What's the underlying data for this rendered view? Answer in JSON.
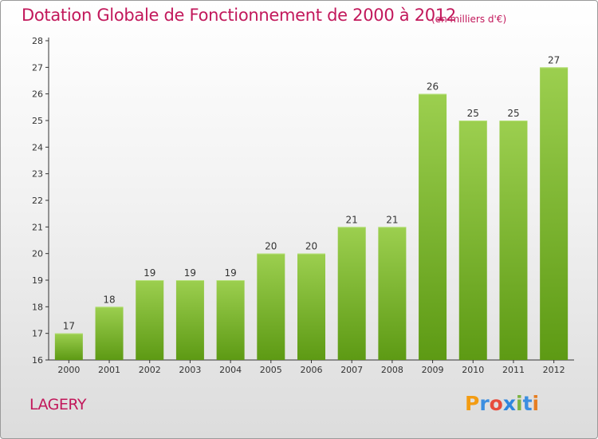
{
  "title": "Dotation Globale de Fonctionnement de 2000 à 2012",
  "subtitle": "(en milliers d'€)",
  "commune": "LAGERY",
  "logo": {
    "text": "Proxiti",
    "letters": [
      {
        "ch": "P",
        "color": "#f39c12"
      },
      {
        "ch": "r",
        "color": "#3b8ee0"
      },
      {
        "ch": "o",
        "color": "#e74c3c"
      },
      {
        "ch": "x",
        "color": "#2e86de"
      },
      {
        "ch": "i",
        "color": "#7cb342"
      },
      {
        "ch": "t",
        "color": "#3b8ee0"
      },
      {
        "ch": "i",
        "color": "#e67e22"
      }
    ]
  },
  "colors": {
    "accent": "#c2185b",
    "bar_top": "#9ccf4f",
    "bar_bottom": "#5d9a14",
    "axis": "#333333",
    "grid": "#cfcfcf"
  },
  "chart_data": {
    "type": "bar",
    "categories": [
      "2000",
      "2001",
      "2002",
      "2003",
      "2004",
      "2005",
      "2006",
      "2007",
      "2008",
      "2009",
      "2010",
      "2011",
      "2012"
    ],
    "values": [
      17,
      18,
      19,
      19,
      19,
      20,
      20,
      21,
      21,
      26,
      25,
      25,
      27
    ],
    "yticks": [
      16,
      17,
      18,
      19,
      20,
      21,
      22,
      23,
      24,
      25,
      26,
      27,
      28
    ],
    "ylim": [
      16,
      28
    ],
    "title": "Dotation Globale de Fonctionnement de 2000 à 2012",
    "xlabel": "",
    "ylabel": "",
    "grid": false,
    "legend": "none"
  }
}
